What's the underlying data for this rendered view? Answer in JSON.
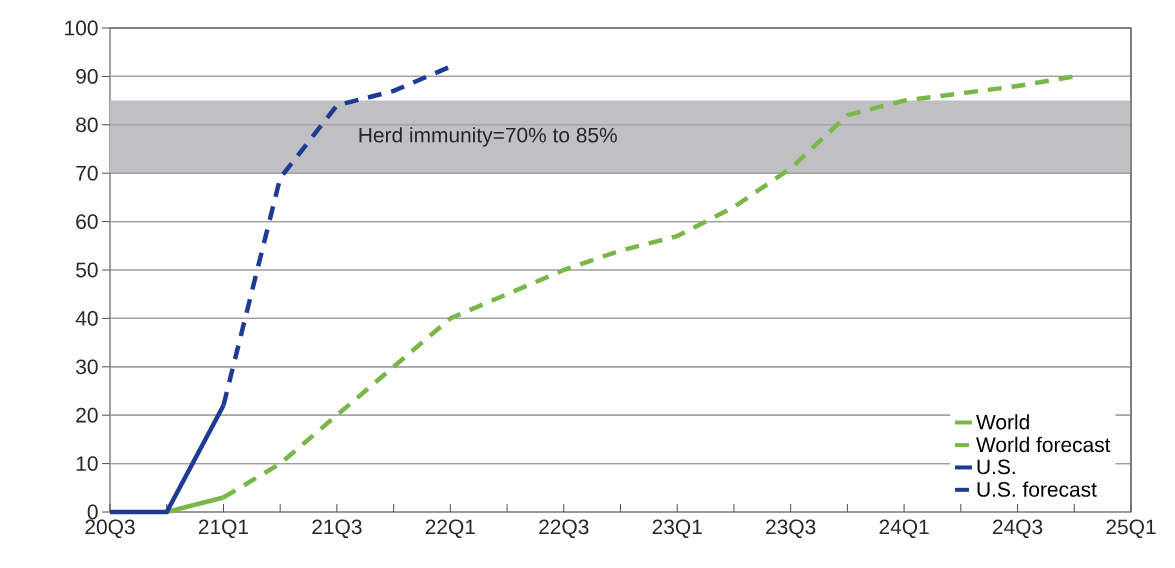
{
  "chart_data": {
    "type": "line",
    "categories": [
      "20Q3",
      null,
      "21Q1",
      null,
      "21Q3",
      null,
      "22Q1",
      null,
      "22Q3",
      null,
      "23Q1",
      null,
      "23Q3",
      null,
      "24Q1",
      null,
      "24Q3",
      null,
      "25Q1"
    ],
    "ylim": [
      0,
      100
    ],
    "yticks": [
      0,
      10,
      20,
      30,
      40,
      50,
      60,
      70,
      80,
      90,
      100
    ],
    "grid": "y",
    "legend": "bottom right",
    "bands": [
      {
        "axis": "y",
        "from": 70,
        "to": 85,
        "label": "Herd immunity=70% to 85%",
        "color": "#c0c0c4"
      }
    ],
    "series": [
      {
        "name": "World",
        "color": "#7ab648",
        "line_style": "solid",
        "values": [
          null,
          0,
          3,
          null,
          null,
          null,
          null,
          null,
          null,
          null,
          null,
          null,
          null,
          null,
          null,
          null,
          null,
          null,
          null
        ]
      },
      {
        "name": "World forecast",
        "color": "#7ab648",
        "line_style": "dashed",
        "values": [
          null,
          null,
          3,
          10,
          20,
          30,
          40,
          45,
          50,
          54,
          57,
          63,
          71,
          82,
          85,
          86.5,
          88,
          90,
          null
        ]
      },
      {
        "name": "U.S.",
        "color": "#1f3a93",
        "line_style": "solid",
        "values": [
          0,
          0,
          22,
          null,
          null,
          null,
          null,
          null,
          null,
          null,
          null,
          null,
          null,
          null,
          null,
          null,
          null,
          null,
          null
        ]
      },
      {
        "name": "U.S. forecast",
        "color": "#1f3a93",
        "line_style": "dashed",
        "values": [
          null,
          null,
          22,
          69,
          84,
          87,
          92,
          null,
          null,
          null,
          null,
          null,
          null,
          null,
          null,
          null,
          null,
          null,
          null
        ]
      }
    ]
  }
}
